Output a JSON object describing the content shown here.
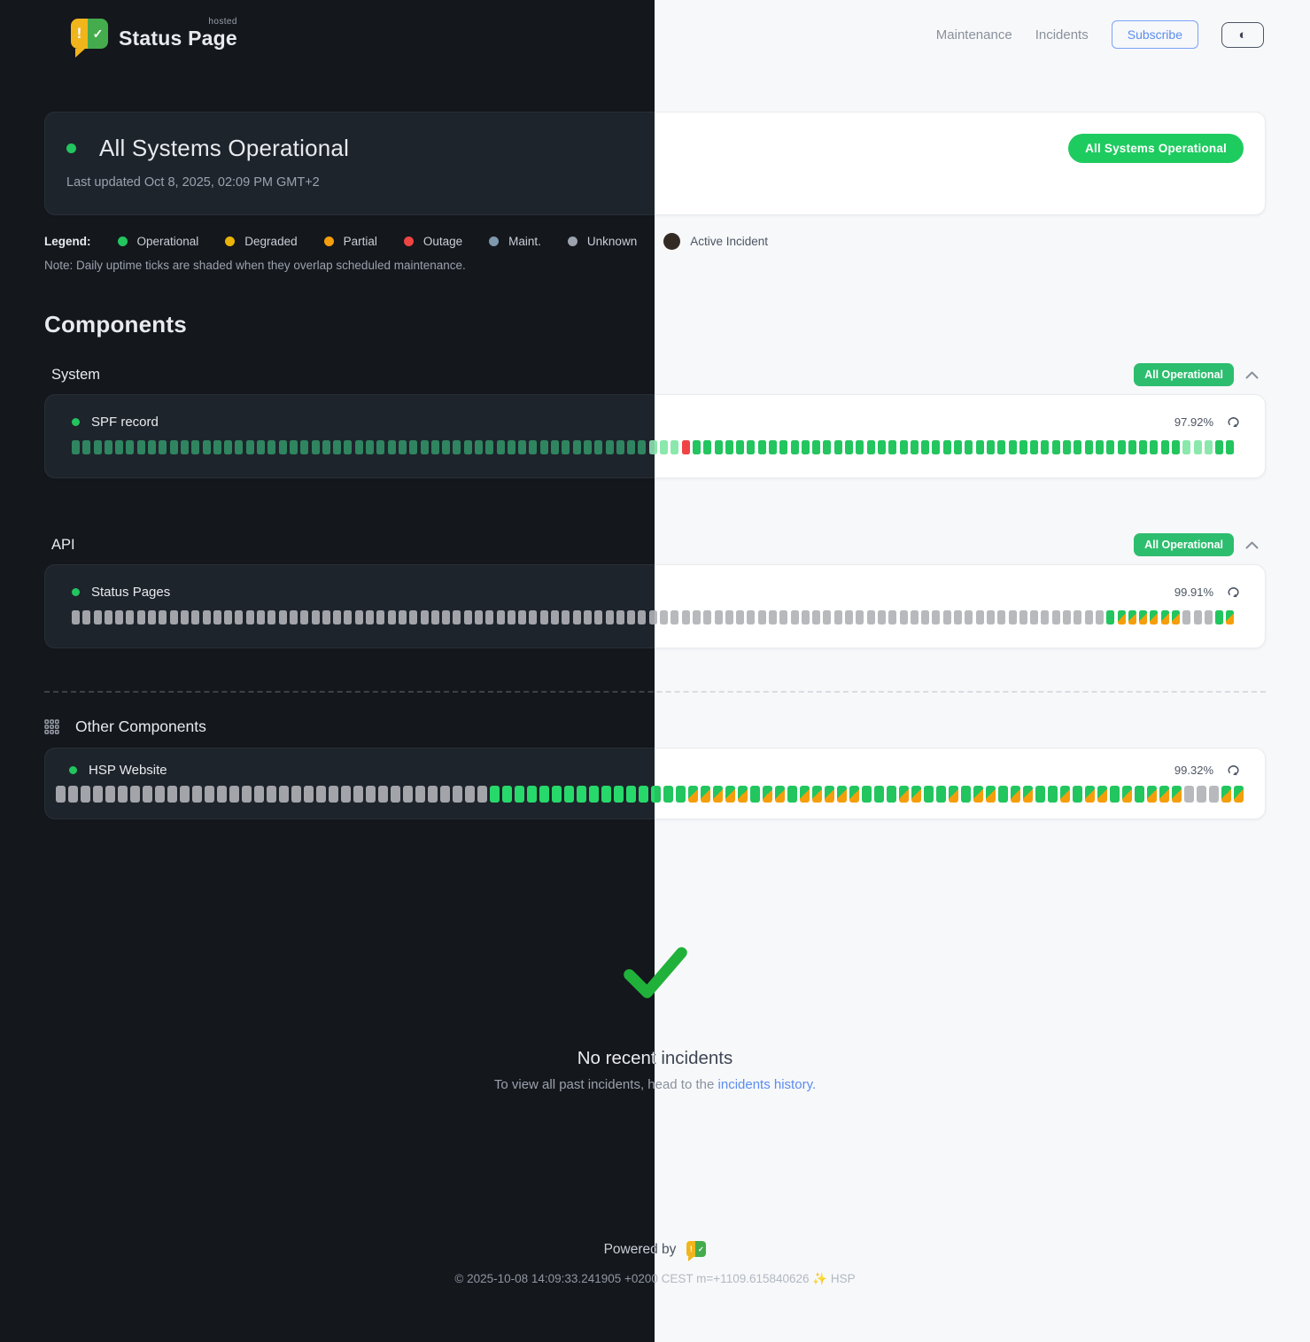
{
  "brand": {
    "name": "Status Page",
    "superscript": "hosted",
    "logo_alert": "!",
    "logo_check": "✓"
  },
  "nav": {
    "items": [
      "Maintenance",
      "Incidents"
    ],
    "subscribe_label": "Subscribe",
    "theme_toggle_icon": "◐"
  },
  "hero": {
    "title": "All Systems Operational",
    "last_updated": "Last updated Oct 8, 2025, 02:09 PM GMT+2",
    "badge": "All Systems Operational",
    "badge_color": "#1ecb5f"
  },
  "legend": {
    "label": "Legend:",
    "items": [
      {
        "name": "Operational",
        "color": "#22c55e"
      },
      {
        "name": "Degraded",
        "color": "#eab308"
      },
      {
        "name": "Partial",
        "color": "#f59e0b"
      },
      {
        "name": "Outage",
        "color": "#ef4444"
      },
      {
        "name": "Maint.",
        "color": "#7e99ad"
      },
      {
        "name": "Unknown",
        "color": "#9ca3af"
      },
      {
        "name": "Active Incident",
        "color": "#342a24"
      }
    ],
    "note": "Note: Daily uptime ticks are shaded when they overlap scheduled maintenance."
  },
  "components": {
    "title": "Components",
    "groups": [
      {
        "name": "System",
        "badge": "All Operational",
        "badge_color": "#2dbd6e",
        "rows": [
          {
            "name": "SPF record",
            "status_color": "#22c55e",
            "uptime": "97.92%",
            "ticks": [
              {
                "s": "ops",
                "n": 53
              },
              {
                "s": "pale",
                "n": 3
              },
              {
                "s": "down",
                "n": 1
              },
              {
                "s": "ops",
                "n": 45
              },
              {
                "s": "pale",
                "n": 3
              },
              {
                "s": "ops",
                "n": 2
              }
            ]
          }
        ]
      },
      {
        "name": "API",
        "badge": "All Operational",
        "badge_color": "#2dbd6e",
        "rows": [
          {
            "name": "Status Pages",
            "status_color": "#22c55e",
            "uptime": "99.91%",
            "ticks": [
              {
                "s": "unk",
                "n": 95
              },
              {
                "s": "op",
                "n": 1
              },
              {
                "s": "mnt",
                "n": 6
              },
              {
                "s": "unk",
                "n": 3
              },
              {
                "s": "op",
                "n": 1
              },
              {
                "s": "mnt",
                "n": 1
              }
            ]
          }
        ]
      }
    ],
    "other": {
      "title": "Other Components",
      "rows": [
        {
          "name": "HSP Website",
          "status_color": "#22c55e",
          "uptime": "99.32%",
          "ticks": [
            {
              "s": "unk",
              "n": 35
            },
            {
              "s": "op",
              "n": 16
            },
            {
              "s": "mnt",
              "n": 5
            },
            {
              "s": "op",
              "n": 1
            },
            {
              "s": "mnt",
              "n": 2
            },
            {
              "s": "op",
              "n": 1
            },
            {
              "s": "mnt",
              "n": 5
            },
            {
              "s": "op",
              "n": 3
            },
            {
              "s": "mnt",
              "n": 2
            },
            {
              "s": "op",
              "n": 2
            },
            {
              "s": "mnt",
              "n": 1
            },
            {
              "s": "op",
              "n": 1
            },
            {
              "s": "mnt",
              "n": 2
            },
            {
              "s": "op",
              "n": 1
            },
            {
              "s": "mnt",
              "n": 2
            },
            {
              "s": "op",
              "n": 2
            },
            {
              "s": "mnt",
              "n": 1
            },
            {
              "s": "op",
              "n": 1
            },
            {
              "s": "mnt",
              "n": 2
            },
            {
              "s": "op",
              "n": 1
            },
            {
              "s": "mnt",
              "n": 1
            },
            {
              "s": "op",
              "n": 1
            },
            {
              "s": "mnt",
              "n": 3
            },
            {
              "s": "unk",
              "n": 3
            },
            {
              "s": "mnt",
              "n": 2
            }
          ]
        }
      ]
    }
  },
  "tick_palette": {
    "operational_light": "#22c55e",
    "operational_dark": "#27d96a",
    "operational_soft_dark": "#2f8560",
    "operational_pale": "#8ae8ac",
    "unknown_light": "#b7b9bd",
    "unknown_dark": "#a2a4a9",
    "outage": "#ef4444",
    "maintenance_overlay": "#f59e0b"
  },
  "incidents": {
    "title": "No recent incidents",
    "subtext_prefix": "To view all past incidents, head to the ",
    "link_label": "incidents history.",
    "check_color": "#20b13a"
  },
  "footer": {
    "powered_by": "Powered by",
    "copyright": "© 2025-10-08 14:09:33.241905 +0200 CEST m=+1109.615840626 ✨ HSP"
  }
}
